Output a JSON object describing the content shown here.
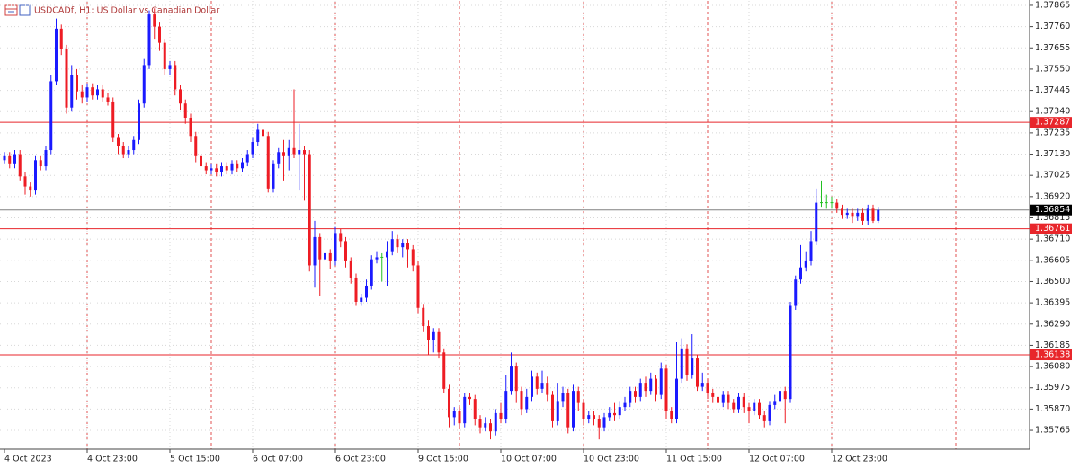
{
  "chart_data": {
    "type": "candlestick",
    "title": "USDCADf, H1:  US Dollar vs Canadian Dollar",
    "up_color": "#1a1aff",
    "down_color": "#ee1c24",
    "doji_color": "#22c022",
    "categories": [
      "4 Oct 2023",
      null,
      null,
      null,
      null,
      null,
      null,
      null,
      null,
      null,
      null,
      null,
      null,
      null,
      null,
      null,
      "4 Oct 23:00",
      null,
      null,
      null,
      null,
      null,
      null,
      null,
      null,
      null,
      null,
      null,
      null,
      null,
      null,
      null,
      "5 Oct 15:00",
      null,
      null,
      null,
      null,
      null,
      null,
      null,
      null,
      null,
      null,
      null,
      null,
      null,
      null,
      null,
      "6 Oct 07:00",
      null,
      null,
      null,
      null,
      null,
      null,
      null,
      null,
      null,
      null,
      null,
      null,
      null,
      null,
      null,
      "6 Oct 23:00",
      null,
      null,
      null,
      null,
      null,
      null,
      null,
      null,
      null,
      null,
      null,
      null,
      null,
      null,
      null,
      "9 Oct 15:00",
      null,
      null,
      null,
      null,
      null,
      null,
      null,
      null,
      null,
      null,
      null,
      null,
      null,
      null,
      null,
      "10 Oct 07:00",
      null,
      null,
      null,
      null,
      null,
      null,
      null,
      null,
      null,
      null,
      null,
      null,
      null,
      null,
      null,
      "10 Oct 23:00",
      null,
      null,
      null,
      null,
      null,
      null,
      null,
      null,
      null,
      null,
      null,
      null,
      null,
      null,
      null,
      "11 Oct 15:00",
      null,
      null,
      null,
      null,
      null,
      null,
      null,
      null,
      null,
      null,
      null,
      null,
      null,
      null,
      null,
      "12 Oct 07:00",
      null,
      null,
      null,
      null,
      null,
      null,
      null,
      null,
      null,
      null,
      null,
      null,
      null,
      null,
      null,
      "12 Oct 23:00",
      null,
      null,
      null,
      null,
      null,
      null,
      null,
      null,
      null
    ],
    "open": [
      1.371,
      1.3712,
      1.3708,
      1.3713,
      1.3702,
      1.3697,
      1.3695,
      1.371,
      1.3707,
      1.3715,
      1.3749,
      1.3775,
      1.3765,
      1.3736,
      1.3752,
      1.3744,
      1.3741,
      1.3746,
      1.3742,
      1.3745,
      1.3741,
      1.3739,
      1.3721,
      1.3717,
      1.3713,
      1.3715,
      1.372,
      1.3738,
      1.3757,
      1.3782,
      1.3776,
      1.3768,
      1.3755,
      1.3757,
      1.3745,
      1.3738,
      1.3731,
      1.3722,
      1.3712,
      1.3707,
      1.3705,
      1.3706,
      1.3704,
      1.3707,
      1.3705,
      1.3708,
      1.3706,
      1.3709,
      1.3713,
      1.3719,
      1.3725,
      1.3722,
      1.3696,
      1.3708,
      1.3714,
      1.3712,
      1.3716,
      1.3713,
      1.3715,
      1.3713,
      1.3658,
      1.3672,
      1.3661,
      1.3664,
      1.366,
      1.3674,
      1.367,
      1.366,
      1.3652,
      1.364,
      1.3642,
      1.3648,
      1.3661,
      1.3662,
      1.3662,
      1.3665,
      1.3671,
      1.3667,
      1.3669,
      1.3666,
      1.3658,
      1.3637,
      1.3628,
      1.3621,
      1.3625,
      1.3615,
      1.3597,
      1.3583,
      1.3586,
      1.358,
      1.3593,
      1.3592,
      1.3582,
      1.3578,
      1.358,
      1.3576,
      1.3585,
      1.3582,
      1.3596,
      1.3608,
      1.3596,
      1.3587,
      1.3593,
      1.3603,
      1.3597,
      1.36,
      1.3594,
      1.3581,
      1.3591,
      1.3595,
      1.3578,
      1.3596,
      1.359,
      1.3582,
      1.3584,
      1.3582,
      1.3578,
      1.3583,
      1.3585,
      1.3584,
      1.3588,
      1.359,
      1.3596,
      1.3593,
      1.36,
      1.3596,
      1.3602,
      1.3594,
      1.3607,
      1.3586,
      1.3582,
      1.3602,
      1.3617,
      1.3604,
      1.3612,
      1.3598,
      1.36,
      1.3595,
      1.3593,
      1.359,
      1.3594,
      1.359,
      1.3587,
      1.3593,
      1.3588,
      1.3586,
      1.359,
      1.3584,
      1.3581,
      1.3589,
      1.3591,
      1.3596,
      1.3592,
      1.3638,
      1.3651,
      1.3657,
      1.366,
      1.367,
      1.3689,
      1.3689,
      1.3689,
      1.3689,
      1.3686,
      1.3683,
      1.3684,
      1.3682,
      1.3684,
      1.368,
      1.3686,
      1.368
    ],
    "high": [
      1.3714,
      1.3714,
      1.3715,
      1.3715,
      1.3704,
      1.3699,
      1.3712,
      1.3712,
      1.3717,
      1.3752,
      1.378,
      1.3777,
      1.3767,
      1.3757,
      1.3755,
      1.3747,
      1.3748,
      1.3748,
      1.3747,
      1.3747,
      1.3743,
      1.3741,
      1.3723,
      1.3719,
      1.3717,
      1.3722,
      1.374,
      1.376,
      1.3784,
      1.3785,
      1.3778,
      1.377,
      1.3759,
      1.3759,
      1.3747,
      1.374,
      1.3733,
      1.3724,
      1.3714,
      1.3709,
      1.3708,
      1.3708,
      1.3709,
      1.3709,
      1.371,
      1.371,
      1.3711,
      1.3715,
      1.3721,
      1.3728,
      1.3728,
      1.3724,
      1.371,
      1.3716,
      1.372,
      1.372,
      1.3745,
      1.3728,
      1.3717,
      1.3715,
      1.368,
      1.3674,
      1.3666,
      1.3666,
      1.3677,
      1.3676,
      1.3672,
      1.3662,
      1.3654,
      1.3644,
      1.3651,
      1.3663,
      1.3665,
      1.3664,
      1.367,
      1.3675,
      1.3673,
      1.3671,
      1.3671,
      1.3668,
      1.366,
      1.3639,
      1.3631,
      1.3627,
      1.3627,
      1.3617,
      1.3599,
      1.3588,
      1.3588,
      1.3595,
      1.3595,
      1.3594,
      1.3584,
      1.3583,
      1.3582,
      1.3587,
      1.359,
      1.3604,
      1.3615,
      1.361,
      1.3598,
      1.3597,
      1.3606,
      1.3605,
      1.3606,
      1.3603,
      1.3596,
      1.36,
      1.3598,
      1.3597,
      1.3599,
      1.3598,
      1.3592,
      1.3586,
      1.3586,
      1.3584,
      1.3585,
      1.3588,
      1.359,
      1.3591,
      1.3593,
      1.3598,
      1.3598,
      1.3602,
      1.3603,
      1.3605,
      1.3604,
      1.361,
      1.3609,
      1.3588,
      1.362,
      1.3622,
      1.3619,
      1.3624,
      1.3614,
      1.3605,
      1.3602,
      1.3597,
      1.3595,
      1.3596,
      1.3596,
      1.3592,
      1.3595,
      1.3595,
      1.359,
      1.3592,
      1.3592,
      1.3586,
      1.3591,
      1.3594,
      1.3598,
      1.3598,
      1.364,
      1.3653,
      1.3668,
      1.3665,
      1.3675,
      1.3696,
      1.37,
      1.3693,
      1.3692,
      1.3691,
      1.3688,
      1.3686,
      1.3686,
      1.3686,
      1.3686,
      1.3688,
      1.3688,
      1.3687
    ],
    "low": [
      1.3708,
      1.3706,
      1.3706,
      1.37,
      1.3693,
      1.3692,
      1.3693,
      1.3705,
      1.3705,
      1.3713,
      1.3747,
      1.3762,
      1.3733,
      1.3734,
      1.374,
      1.3738,
      1.3739,
      1.374,
      1.374,
      1.3739,
      1.3737,
      1.3719,
      1.3713,
      1.3711,
      1.3711,
      1.3713,
      1.3718,
      1.3736,
      1.3755,
      1.377,
      1.3764,
      1.3752,
      1.3752,
      1.3742,
      1.3735,
      1.3728,
      1.3719,
      1.3709,
      1.3705,
      1.3703,
      1.3703,
      1.3702,
      1.3702,
      1.3703,
      1.3703,
      1.3704,
      1.3704,
      1.3707,
      1.3711,
      1.3717,
      1.3718,
      1.3694,
      1.3694,
      1.3706,
      1.37,
      1.3705,
      1.3711,
      1.3695,
      1.369,
      1.3655,
      1.3647,
      1.3643,
      1.3658,
      1.3656,
      1.3658,
      1.3667,
      1.3657,
      1.3649,
      1.3638,
      1.3638,
      1.364,
      1.3646,
      1.3659,
      1.365,
      1.3648,
      1.3663,
      1.3664,
      1.3662,
      1.3657,
      1.3655,
      1.3634,
      1.3625,
      1.3614,
      1.3615,
      1.3612,
      1.3595,
      1.3578,
      1.3579,
      1.3577,
      1.3578,
      1.3589,
      1.3579,
      1.3575,
      1.3576,
      1.3572,
      1.3574,
      1.358,
      1.358,
      1.3594,
      1.359,
      1.3584,
      1.3585,
      1.3591,
      1.3594,
      1.3595,
      1.3591,
      1.3578,
      1.3579,
      1.3588,
      1.3575,
      1.3576,
      1.3586,
      1.3579,
      1.358,
      1.3579,
      1.3572,
      1.3576,
      1.3581,
      1.3581,
      1.3582,
      1.3586,
      1.3588,
      1.359,
      1.3591,
      1.3593,
      1.3594,
      1.3591,
      1.3592,
      1.3582,
      1.358,
      1.358,
      1.36,
      1.3601,
      1.3602,
      1.3596,
      1.3596,
      1.3592,
      1.359,
      1.3586,
      1.3588,
      1.3587,
      1.3585,
      1.3585,
      1.3585,
      1.358,
      1.3584,
      1.3582,
      1.3578,
      1.3579,
      1.3587,
      1.3589,
      1.358,
      1.359,
      1.3636,
      1.3649,
      1.3655,
      1.3658,
      1.3668,
      1.3687,
      1.3686,
      1.3686,
      1.3684,
      1.3681,
      1.3681,
      1.3679,
      1.368,
      1.3678,
      1.3678,
      1.3679,
      1.3679
    ],
    "close": [
      1.3712,
      1.3708,
      1.3713,
      1.3702,
      1.3697,
      1.3695,
      1.371,
      1.3707,
      1.3715,
      1.3749,
      1.3775,
      1.3765,
      1.3736,
      1.3752,
      1.3744,
      1.3741,
      1.3746,
      1.3742,
      1.3745,
      1.3741,
      1.3739,
      1.3721,
      1.3717,
      1.3713,
      1.3715,
      1.372,
      1.3738,
      1.3757,
      1.3782,
      1.3776,
      1.3768,
      1.3755,
      1.3757,
      1.3745,
      1.3738,
      1.3731,
      1.3722,
      1.3712,
      1.3707,
      1.3705,
      1.3706,
      1.3704,
      1.3707,
      1.3705,
      1.3708,
      1.3706,
      1.3709,
      1.3713,
      1.3719,
      1.3725,
      1.3722,
      1.3696,
      1.3708,
      1.3714,
      1.3712,
      1.3716,
      1.3713,
      1.3715,
      1.3713,
      1.3658,
      1.3672,
      1.3661,
      1.3664,
      1.366,
      1.3674,
      1.367,
      1.366,
      1.3652,
      1.364,
      1.3642,
      1.3648,
      1.3661,
      1.3662,
      1.3662,
      1.3665,
      1.3671,
      1.3667,
      1.3669,
      1.3666,
      1.3658,
      1.3637,
      1.3628,
      1.3621,
      1.3625,
      1.3615,
      1.3597,
      1.3583,
      1.3586,
      1.358,
      1.3593,
      1.3592,
      1.3582,
      1.3578,
      1.358,
      1.3576,
      1.3585,
      1.3582,
      1.3596,
      1.3608,
      1.3596,
      1.3587,
      1.3593,
      1.3603,
      1.3597,
      1.36,
      1.3594,
      1.3581,
      1.3591,
      1.3595,
      1.3578,
      1.3596,
      1.359,
      1.3582,
      1.3584,
      1.3582,
      1.3578,
      1.3583,
      1.3585,
      1.3584,
      1.3588,
      1.359,
      1.3596,
      1.3593,
      1.36,
      1.3596,
      1.3602,
      1.3594,
      1.3607,
      1.3586,
      1.3582,
      1.3602,
      1.3617,
      1.3604,
      1.3612,
      1.3598,
      1.36,
      1.3595,
      1.3593,
      1.359,
      1.3594,
      1.359,
      1.3587,
      1.3593,
      1.3588,
      1.3586,
      1.359,
      1.3584,
      1.3581,
      1.3589,
      1.3591,
      1.3596,
      1.3592,
      1.3638,
      1.3651,
      1.3657,
      1.366,
      1.367,
      1.3689,
      1.3689,
      1.3689,
      1.3689,
      1.3686,
      1.3683,
      1.3684,
      1.3682,
      1.3684,
      1.368,
      1.3686,
      1.368,
      1.36854
    ],
    "ylim": [
      1.35672,
      1.37887
    ],
    "yticks": [
      1.37865,
      {
        "value": 1.3776,
        "label": "1.37760"
      },
      1.37655,
      {
        "value": 1.3755,
        "label": "1.37550"
      },
      1.37445,
      {
        "value": 1.3734,
        "label": "1.37340"
      },
      1.37235,
      {
        "value": 1.3713,
        "label": "1.37130"
      },
      1.37025,
      {
        "value": 1.3692,
        "label": "1.36920"
      },
      1.36815,
      {
        "value": 1.3671,
        "label": "1.36710"
      },
      1.36605,
      {
        "value": 1.365,
        "label": "1.36500"
      },
      1.36395,
      {
        "value": 1.3629,
        "label": "1.36290"
      },
      1.36185,
      {
        "value": 1.3608,
        "label": "1.36080"
      },
      1.35975,
      {
        "value": 1.3587,
        "label": "1.35870"
      },
      1.35765
    ],
    "grid": true,
    "levels": [
      {
        "value": 1.37287,
        "color": "#e8262b"
      },
      {
        "value": 1.36761,
        "color": "#e8262b"
      },
      {
        "value": 1.36138,
        "color": "#e8262b"
      }
    ],
    "bid": {
      "value": 1.36854,
      "color": "#808080"
    }
  }
}
